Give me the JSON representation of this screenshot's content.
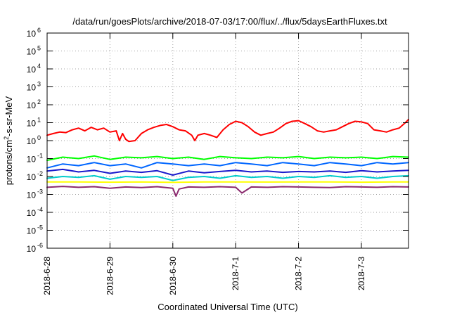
{
  "chart_data": {
    "type": "line",
    "title": "/data/run/goesPlots/archive/2018-07-03/17:00/flux/../flux/5daysEarthFluxes.txt",
    "xlabel": "Coordinated Universal Time (UTC)",
    "ylabel": "protons/cm²-s-sr-MeV",
    "ylabel_parts": [
      "protons/cm",
      "2",
      "-s-sr-MeV"
    ],
    "y_scale": "log",
    "ylim": [
      1e-06,
      1000000.0
    ],
    "xlim": [
      0,
      5.75
    ],
    "grid": true,
    "x_ticks": [
      {
        "x": 0,
        "label": "2018-6-28"
      },
      {
        "x": 1,
        "label": "2018-6-29"
      },
      {
        "x": 2,
        "label": "2018-6-30"
      },
      {
        "x": 3,
        "label": "2018-7-1"
      },
      {
        "x": 4,
        "label": "2018-7-2"
      },
      {
        "x": 5,
        "label": "2018-7-3"
      }
    ],
    "y_ticks": [
      {
        "exp": -6,
        "label": "10",
        "sup": "-6"
      },
      {
        "exp": -5,
        "label": "10",
        "sup": "-5"
      },
      {
        "exp": -4,
        "label": "10",
        "sup": "-4"
      },
      {
        "exp": -3,
        "label": "10",
        "sup": "-3"
      },
      {
        "exp": -2,
        "label": "10",
        "sup": "-2"
      },
      {
        "exp": -1,
        "label": "10",
        "sup": "-1"
      },
      {
        "exp": 0,
        "label": "10",
        "sup": "0"
      },
      {
        "exp": 1,
        "label": "10",
        "sup": "1"
      },
      {
        "exp": 2,
        "label": "10",
        "sup": "2"
      },
      {
        "exp": 3,
        "label": "10",
        "sup": "3"
      },
      {
        "exp": 4,
        "label": "10",
        "sup": "4"
      },
      {
        "exp": 5,
        "label": "10",
        "sup": "5"
      },
      {
        "exp": 6,
        "label": "10",
        "sup": "6"
      }
    ],
    "series": [
      {
        "color": "#ff0000",
        "x": [
          0,
          0.1,
          0.2,
          0.3,
          0.4,
          0.5,
          0.6,
          0.7,
          0.8,
          0.9,
          1.0,
          1.1,
          1.15,
          1.2,
          1.25,
          1.3,
          1.4,
          1.5,
          1.6,
          1.7,
          1.8,
          1.9,
          2.0,
          2.1,
          2.2,
          2.3,
          2.35,
          2.4,
          2.5,
          2.6,
          2.7,
          2.8,
          2.9,
          3.0,
          3.1,
          3.2,
          3.3,
          3.4,
          3.5,
          3.6,
          3.7,
          3.8,
          3.9,
          4.0,
          4.1,
          4.2,
          4.3,
          4.4,
          4.5,
          4.6,
          4.7,
          4.8,
          4.9,
          5.0,
          5.1,
          5.2,
          5.3,
          5.4,
          5.5,
          5.6,
          5.7,
          5.75
        ],
        "y": [
          2.0,
          2.5,
          3.0,
          2.8,
          4.0,
          5.0,
          3.5,
          5.5,
          4.0,
          5.0,
          3.0,
          3.5,
          1.0,
          2.5,
          1.2,
          0.9,
          1.0,
          2.5,
          4.0,
          5.5,
          7.0,
          8.0,
          6.0,
          4.0,
          3.5,
          2.0,
          1.0,
          2.0,
          2.5,
          2.0,
          1.5,
          4.0,
          8.0,
          12.0,
          10.0,
          6.0,
          3.0,
          2.0,
          2.5,
          3.0,
          5.0,
          9.0,
          12.0,
          13.0,
          9.0,
          6.0,
          3.5,
          3.0,
          3.5,
          4.0,
          6.0,
          9.0,
          12.0,
          11.0,
          9.0,
          4.0,
          3.5,
          3.0,
          4.0,
          5.0,
          10.0,
          15.0
        ]
      },
      {
        "color": "#00ff00",
        "x": [
          0,
          0.25,
          0.5,
          0.75,
          1.0,
          1.25,
          1.5,
          1.75,
          2.0,
          2.25,
          2.5,
          2.75,
          3.0,
          3.25,
          3.5,
          3.75,
          4.0,
          4.25,
          4.5,
          4.75,
          5.0,
          5.25,
          5.5,
          5.75
        ],
        "y": [
          0.08,
          0.12,
          0.1,
          0.14,
          0.09,
          0.12,
          0.11,
          0.13,
          0.1,
          0.12,
          0.09,
          0.13,
          0.11,
          0.1,
          0.12,
          0.11,
          0.13,
          0.1,
          0.12,
          0.11,
          0.12,
          0.1,
          0.13,
          0.12
        ]
      },
      {
        "color": "#0066ff",
        "x": [
          0,
          0.25,
          0.5,
          0.75,
          1.0,
          1.25,
          1.5,
          1.75,
          2.0,
          2.25,
          2.5,
          2.75,
          3.0,
          3.25,
          3.5,
          3.75,
          4.0,
          4.25,
          4.5,
          4.75,
          5.0,
          5.25,
          5.5,
          5.75
        ],
        "y": [
          0.03,
          0.05,
          0.04,
          0.06,
          0.04,
          0.05,
          0.03,
          0.06,
          0.05,
          0.04,
          0.05,
          0.04,
          0.06,
          0.05,
          0.04,
          0.06,
          0.05,
          0.04,
          0.06,
          0.05,
          0.04,
          0.06,
          0.05,
          0.06
        ]
      },
      {
        "color": "#1a1acc",
        "x": [
          0,
          0.25,
          0.5,
          0.75,
          1.0,
          1.25,
          1.5,
          1.75,
          2.0,
          2.25,
          2.5,
          2.75,
          3.0,
          3.25,
          3.5,
          3.75,
          4.0,
          4.25,
          4.5,
          4.75,
          5.0,
          5.25,
          5.5,
          5.75
        ],
        "y": [
          0.02,
          0.025,
          0.018,
          0.022,
          0.015,
          0.02,
          0.017,
          0.021,
          0.012,
          0.02,
          0.016,
          0.019,
          0.022,
          0.018,
          0.02,
          0.017,
          0.019,
          0.018,
          0.02,
          0.017,
          0.021,
          0.018,
          0.02,
          0.022
        ]
      },
      {
        "color": "#00cccc",
        "x": [
          0,
          0.25,
          0.5,
          0.75,
          1.0,
          1.25,
          1.5,
          1.75,
          2.0,
          2.25,
          2.5,
          2.75,
          3.0,
          3.25,
          3.5,
          3.75,
          4.0,
          4.25,
          4.5,
          4.75,
          5.0,
          5.25,
          5.5,
          5.75
        ],
        "y": [
          0.008,
          0.01,
          0.009,
          0.011,
          0.007,
          0.01,
          0.009,
          0.01,
          0.006,
          0.009,
          0.01,
          0.008,
          0.011,
          0.009,
          0.01,
          0.008,
          0.01,
          0.009,
          0.011,
          0.009,
          0.01,
          0.008,
          0.01,
          0.011
        ]
      },
      {
        "color": "#ffff00",
        "x": [
          0,
          0.5,
          1.0,
          1.5,
          2.0,
          2.5,
          3.0,
          3.5,
          4.0,
          4.5,
          5.0,
          5.5,
          5.75
        ],
        "y": [
          0.005,
          0.005,
          0.0048,
          0.005,
          0.0047,
          0.005,
          0.005,
          0.0049,
          0.005,
          0.005,
          0.0048,
          0.005,
          0.005
        ]
      },
      {
        "color": "#8b2a6e",
        "x": [
          0,
          0.25,
          0.5,
          0.75,
          1.0,
          1.25,
          1.5,
          1.75,
          2.0,
          2.05,
          2.1,
          2.25,
          2.5,
          2.75,
          3.0,
          3.1,
          3.25,
          3.5,
          3.75,
          4.0,
          4.25,
          4.5,
          4.75,
          5.0,
          5.25,
          5.5,
          5.75
        ],
        "y": [
          0.0025,
          0.0028,
          0.0025,
          0.0027,
          0.0022,
          0.0026,
          0.0024,
          0.0027,
          0.0022,
          0.0008,
          0.002,
          0.0026,
          0.0025,
          0.0027,
          0.0025,
          0.0012,
          0.0026,
          0.0025,
          0.0027,
          0.0026,
          0.0025,
          0.0024,
          0.0027,
          0.0026,
          0.0025,
          0.0027,
          0.0026
        ]
      }
    ]
  }
}
